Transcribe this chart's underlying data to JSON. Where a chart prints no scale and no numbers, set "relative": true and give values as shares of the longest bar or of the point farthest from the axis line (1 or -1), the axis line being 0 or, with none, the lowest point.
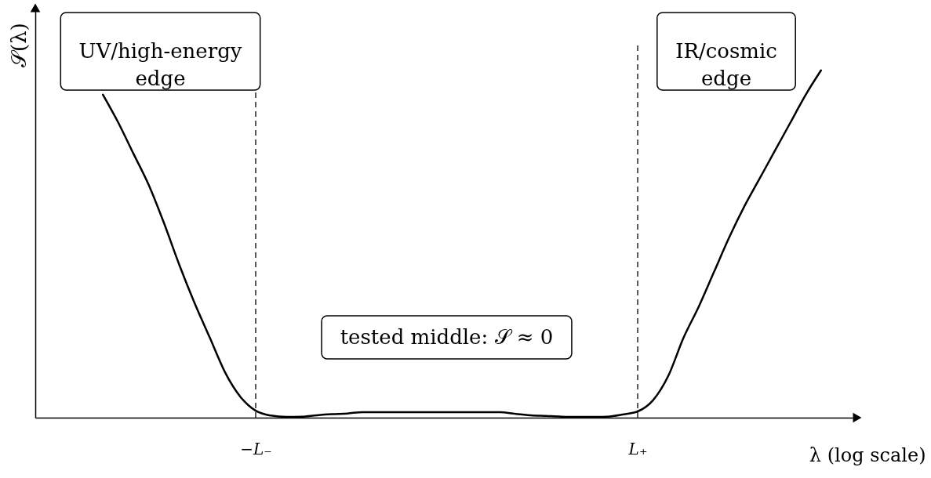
{
  "chart_data": {
    "type": "line",
    "relative": true,
    "xlabel": "λ (log scale)",
    "ylabel": "𝒮(λ)",
    "categories": [
      null,
      null,
      null,
      null,
      null,
      null,
      null,
      null,
      null,
      null,
      "−L₋",
      null,
      null,
      null,
      null,
      null,
      null,
      null,
      null,
      null,
      null,
      null,
      null,
      null,
      null,
      null,
      null,
      null,
      null,
      null,
      null,
      null,
      null,
      null,
      null,
      "L₊",
      null,
      null,
      null,
      null,
      null,
      null,
      null,
      null,
      null,
      null,
      null,
      null
    ],
    "values": [
      0.93,
      0.85,
      0.76,
      0.67,
      0.56,
      0.44,
      0.33,
      0.23,
      0.13,
      0.06,
      0.02,
      0.006,
      0.002,
      0.003,
      0.007,
      0.01,
      0.012,
      0.016,
      0.016,
      0.016,
      0.016,
      0.016,
      0.016,
      0.016,
      0.016,
      0.016,
      0.016,
      0.011,
      0.007,
      0.005,
      0.003,
      0.002,
      0.002,
      0.003,
      0.009,
      0.018,
      0.05,
      0.12,
      0.23,
      0.32,
      0.42,
      0.52,
      0.61,
      0.69,
      0.77,
      0.85,
      0.93,
      1
    ],
    "color": "#000000",
    "ref_lines": [
      {
        "axis": "x",
        "value": "−L₋",
        "line_style": "dashed"
      },
      {
        "axis": "x",
        "value": "L₊",
        "line_style": "dashed"
      }
    ],
    "annotations": [
      "UV/high-energy\nedge",
      "IR/cosmic\nedge",
      "tested middle: 𝒮 ≈ 0"
    ],
    "tick_labels": "x"
  }
}
